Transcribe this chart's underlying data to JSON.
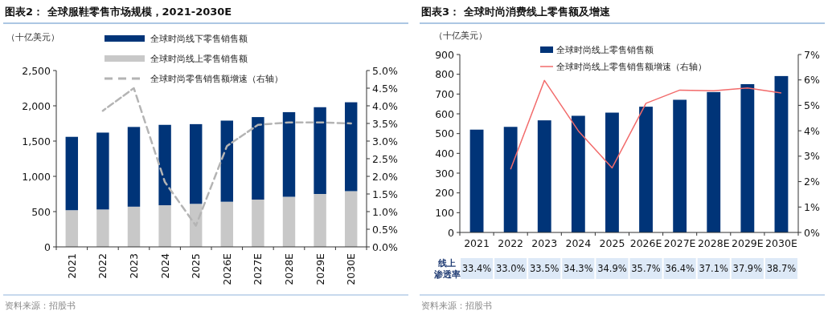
{
  "chart_data": [
    {
      "type": "bar",
      "title": "图表2：  全球服鞋零售市场规模，2021-2030E",
      "ylabel": "（十亿美元）",
      "stacked": true,
      "legend": "top",
      "grid": false,
      "categories": [
        "2021",
        "2022",
        "2023",
        "2024",
        "2025",
        "2026E",
        "2027E",
        "2028E",
        "2029E",
        "2030E"
      ],
      "series": [
        {
          "name": "全球时尚线上零售销售额",
          "color": "#c8c8c8",
          "values": [
            520,
            530,
            570,
            590,
            610,
            640,
            670,
            710,
            750,
            790
          ]
        },
        {
          "name": "全球时尚线下零售销售额",
          "color": "#003478",
          "values": [
            1040,
            1090,
            1130,
            1140,
            1130,
            1150,
            1170,
            1200,
            1230,
            1260
          ]
        },
        {
          "name": "全球时尚零售销售额增速（右轴）",
          "type": "line",
          "axis": "y2",
          "line_style": "dashed",
          "color": "#b4b4b4",
          "values": [
            null,
            3.86,
            4.5,
            1.84,
            0.6,
            2.86,
            3.46,
            3.53,
            3.53,
            3.5
          ]
        }
      ],
      "ylim": [
        0,
        2500
      ],
      "yticks": [
        0,
        {
          "value": 500,
          "label": "500"
        },
        {
          "value": 1000,
          "label": "1,000"
        },
        {
          "value": 1500,
          "label": "1,500"
        },
        {
          "value": 2000,
          "label": "2,000"
        },
        {
          "value": 2500,
          "label": "2,500"
        }
      ],
      "y2lim": [
        0,
        5
      ],
      "y2ticks": [
        {
          "value": 0,
          "label": "0.0%"
        },
        {
          "value": 0.5,
          "label": "0.5%"
        },
        {
          "value": 1,
          "label": "1.0%"
        },
        {
          "value": 1.5,
          "label": "1.5%"
        },
        {
          "value": 2,
          "label": "2.0%"
        },
        {
          "value": 2.5,
          "label": "2.5%"
        },
        {
          "value": 3,
          "label": "3.0%"
        },
        {
          "value": 3.5,
          "label": "3.5%"
        },
        {
          "value": 4,
          "label": "4.0%"
        },
        {
          "value": 4.5,
          "label": "4.5%"
        },
        {
          "value": 5,
          "label": "5.0%"
        }
      ],
      "annotations": [
        "资料来源：招股书"
      ]
    },
    {
      "type": "bar",
      "title": "图表3：  全球时尚消费线上零售额及增速",
      "ylabel": "（十亿美元）",
      "legend": "top",
      "grid": false,
      "categories": [
        "2021",
        "2022",
        "2023",
        "2024",
        "2025",
        "2026E",
        "2027E",
        "2028E",
        "2029E",
        "2030E"
      ],
      "series": [
        {
          "name": "全球时尚线上零售销售额",
          "color": "#003478",
          "values": [
            520,
            534,
            567,
            590,
            606,
            636,
            671,
            710,
            750,
            791
          ]
        },
        {
          "name": "全球时尚线上零售销售额增速（右轴）",
          "type": "line",
          "axis": "y2",
          "line_style": "solid",
          "color": "#f26b6b",
          "values": [
            null,
            2.48,
            5.98,
            4.0,
            2.54,
            5.08,
            5.6,
            5.57,
            5.68,
            5.49
          ]
        }
      ],
      "ylim": [
        0,
        900
      ],
      "yticks": [
        0,
        100,
        200,
        300,
        400,
        500,
        600,
        700,
        800,
        900
      ],
      "y2lim": [
        0,
        7
      ],
      "y2ticks": [
        {
          "value": 0,
          "label": "0%"
        },
        {
          "value": 1,
          "label": "1%"
        },
        {
          "value": 2,
          "label": "2%"
        },
        {
          "value": 3,
          "label": "3%"
        },
        {
          "value": 4,
          "label": "4%"
        },
        {
          "value": 5,
          "label": "5%"
        },
        {
          "value": 6,
          "label": "6%"
        },
        {
          "value": 7,
          "label": "7%"
        }
      ],
      "annotations": [
        "资料来源：招股书",
        "线上渗透率",
        "33.4%",
        "33.0%",
        "33.5%",
        "34.3%",
        "34.9%",
        "35.7%",
        "36.4%",
        "37.1%",
        "37.9%",
        "38.7%"
      ]
    }
  ]
}
